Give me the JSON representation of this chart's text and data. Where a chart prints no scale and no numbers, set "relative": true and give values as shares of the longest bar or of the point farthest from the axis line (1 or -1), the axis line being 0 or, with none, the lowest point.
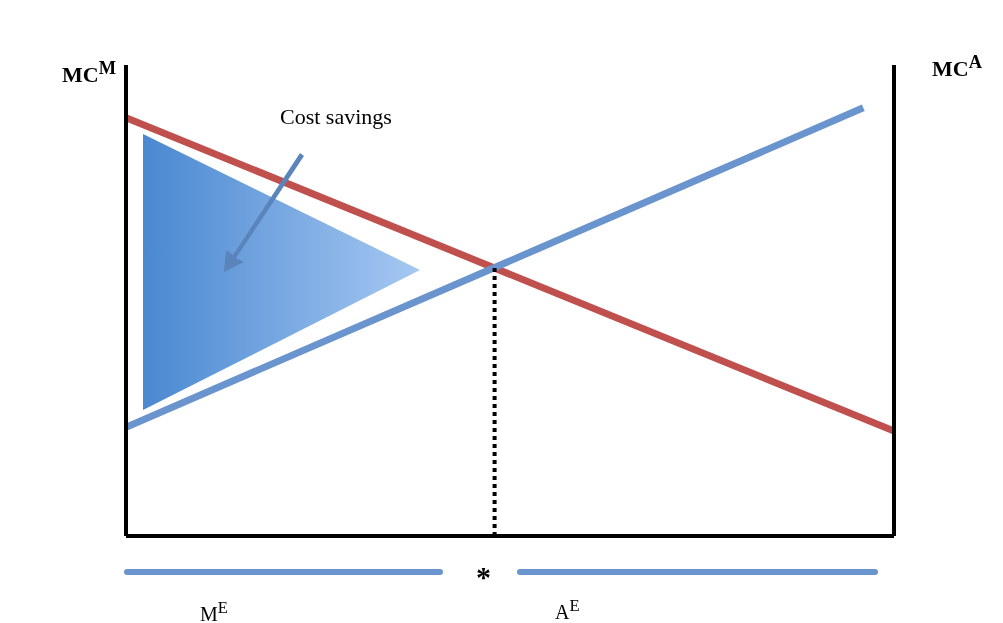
{
  "chart_data": {
    "type": "line",
    "relative": true,
    "ylabel": "MC$^{M}$",
    "y2label": "MC$^{A}$",
    "categories": [
      null,
      null,
      null,
      null,
      null,
      null,
      null,
      null,
      null,
      null,
      null,
      null,
      null,
      null,
      null,
      null,
      null,
      null,
      null,
      null,
      null,
      null,
      null,
      null,
      null,
      null
    ],
    "series": [
      {
        "color": "#c0504d",
        "values": [
          0.977,
          null,
          null,
          null,
          null,
          null,
          null,
          null,
          null,
          null,
          null,
          null,
          null,
          null,
          null,
          null,
          null,
          null,
          null,
          null,
          null,
          null,
          null,
          null,
          null,
          0.245
        ]
      },
      {
        "color": "#6a94cd",
        "values": [
          0.254,
          null,
          null,
          null,
          null,
          null,
          null,
          null,
          null,
          null,
          null,
          null,
          null,
          null,
          null,
          null,
          null,
          null,
          null,
          null,
          null,
          null,
          null,
          null,
          1,
          null
        ]
      }
    ],
    "annotations": [
      "Cost savings",
      "*",
      "M$^{E}$",
      "A$^{E}$"
    ],
    "marker": "none",
    "line_style": "solid"
  }
}
